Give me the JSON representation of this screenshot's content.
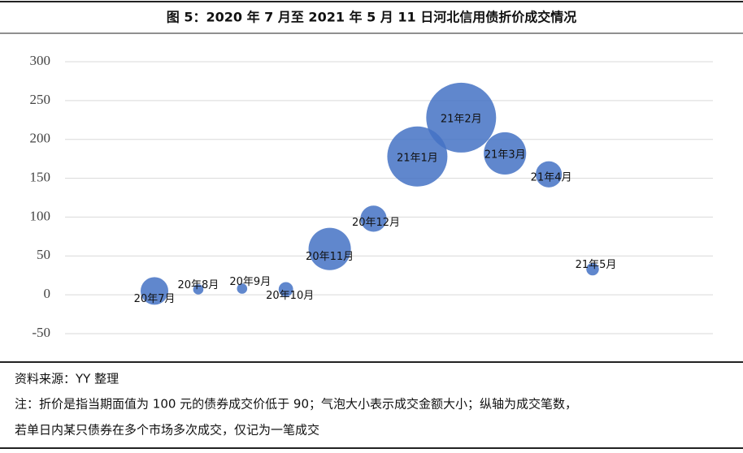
{
  "chart_data": {
    "type": "bubble",
    "title": "图 5：2020 年 7 月至 2021 年 5 月 11 日河北信用债折价成交情况",
    "categories": [
      "20年7月",
      "20年8月",
      "20年9月",
      "20年10月",
      "20年11月",
      "20年12月",
      "21年1月",
      "21年2月",
      "21年3月",
      "21年4月",
      "21年5月"
    ],
    "values": [
      5,
      7,
      8,
      7,
      59,
      98,
      178,
      228,
      182,
      155,
      33
    ],
    "sizes": [
      29,
      4,
      4,
      8,
      68,
      26,
      137,
      185,
      68,
      26,
      6
    ],
    "color": "#4472c4",
    "ylim": [
      -50,
      300
    ],
    "yticks": [
      -50,
      0,
      50,
      100,
      150,
      200,
      250,
      300
    ],
    "grid": true
  },
  "source": "资料来源：YY 整理",
  "notes": [
    "注：折价是指当期面值为 100 元的债券成交价低于 90；气泡大小表示成交金额大小；纵轴为成交笔数，",
    "若单日内某只债券在多个市场多次成交，仅记为一笔成交"
  ]
}
